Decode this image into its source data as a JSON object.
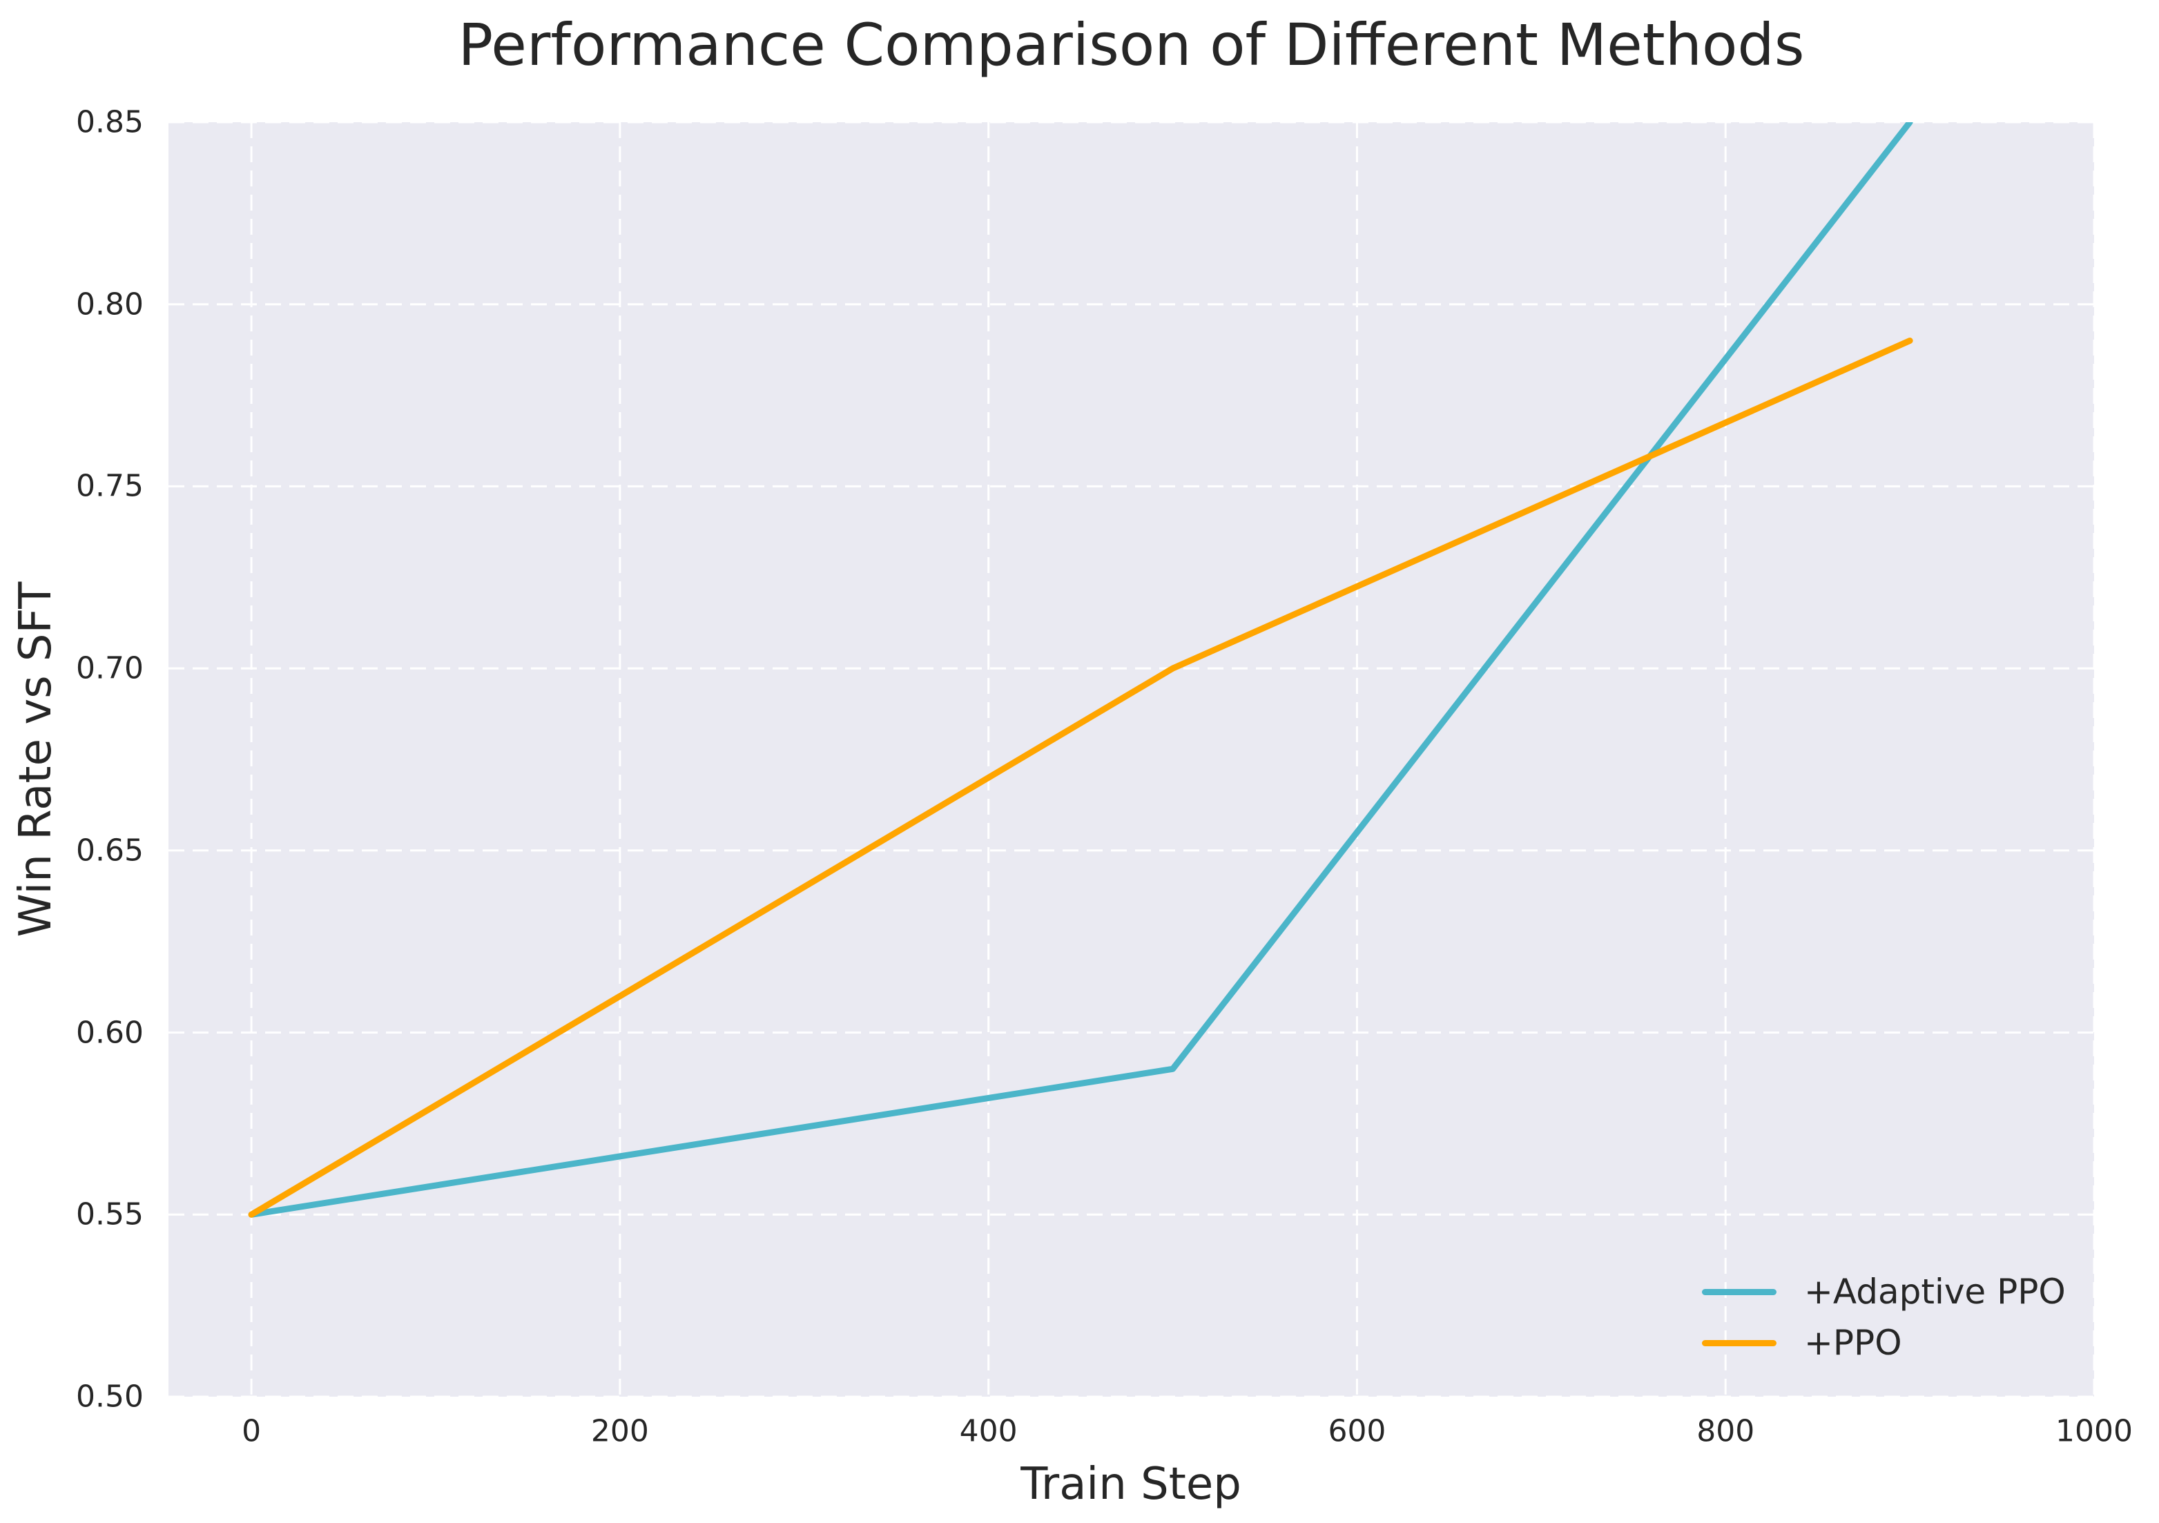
{
  "chart_data": {
    "type": "line",
    "title": "Performance Comparison of Different Methods",
    "xlabel": "Train Step",
    "ylabel": "Win Rate vs SFT",
    "xlim": [
      -45,
      1000
    ],
    "ylim": [
      0.5,
      0.85
    ],
    "x_ticks": [
      0,
      200,
      400,
      600,
      800,
      1000
    ],
    "x_tick_labels": [
      "0",
      "200",
      "400",
      "600",
      "800",
      "1000"
    ],
    "y_ticks": [
      0.5,
      0.55,
      0.6,
      0.65,
      0.7,
      0.75,
      0.8,
      0.85
    ],
    "y_tick_labels": [
      "0.50",
      "0.55",
      "0.60",
      "0.65",
      "0.70",
      "0.75",
      "0.80",
      "0.85"
    ],
    "grid": true,
    "grid_style": "dashed",
    "legend_position": "lower right",
    "series": [
      {
        "name": "+Adaptive PPO",
        "color": "#4bb5c9",
        "x": [
          0,
          500,
          900
        ],
        "values": [
          0.55,
          0.59,
          0.85
        ]
      },
      {
        "name": "+PPO",
        "color": "#ffa500",
        "x": [
          0,
          500,
          900
        ],
        "values": [
          0.55,
          0.7,
          0.79
        ]
      }
    ],
    "colors": {
      "plot_background": "#eaeaf2",
      "figure_background": "#ffffff",
      "grid": "#ffffff",
      "text": "#262626"
    }
  }
}
